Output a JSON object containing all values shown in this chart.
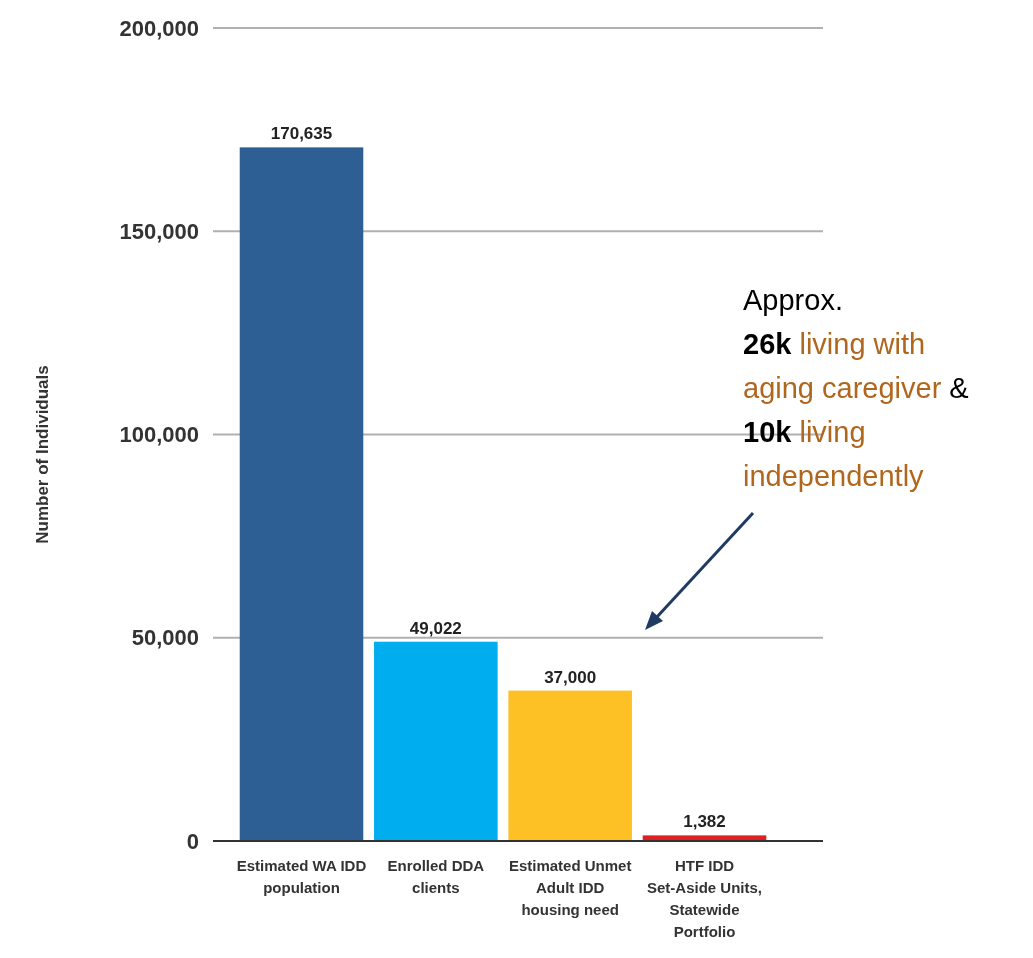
{
  "chart_data": {
    "type": "bar",
    "ylabel": "Number of Individuals",
    "categories": [
      "Estimated WA IDD population",
      "Enrolled DDA clients",
      "Estimated Unmet Adult IDD housing need",
      "HTF IDD Set-Aside Units, Statewide Portfolio"
    ],
    "values": [
      170635,
      49022,
      37000,
      1382
    ],
    "colors": [
      "#2e5f94",
      "#00aeef",
      "#fdc025",
      "#e02020"
    ],
    "value_labels": [
      "170,635",
      "49,022",
      "37,000",
      "1,382"
    ],
    "ylim": [
      0,
      200000
    ],
    "yticks": [
      0,
      {
        "value": 50000,
        "label": "50,000"
      },
      {
        "value": 100000,
        "label": "100,000"
      },
      {
        "value": 150000,
        "label": "150,000"
      },
      {
        "value": 200000,
        "label": "200,000"
      }
    ],
    "grid": "y",
    "annotations": [
      "Approx.\n26k living with\naging caregiver &\n10k living\nindependently"
    ]
  }
}
